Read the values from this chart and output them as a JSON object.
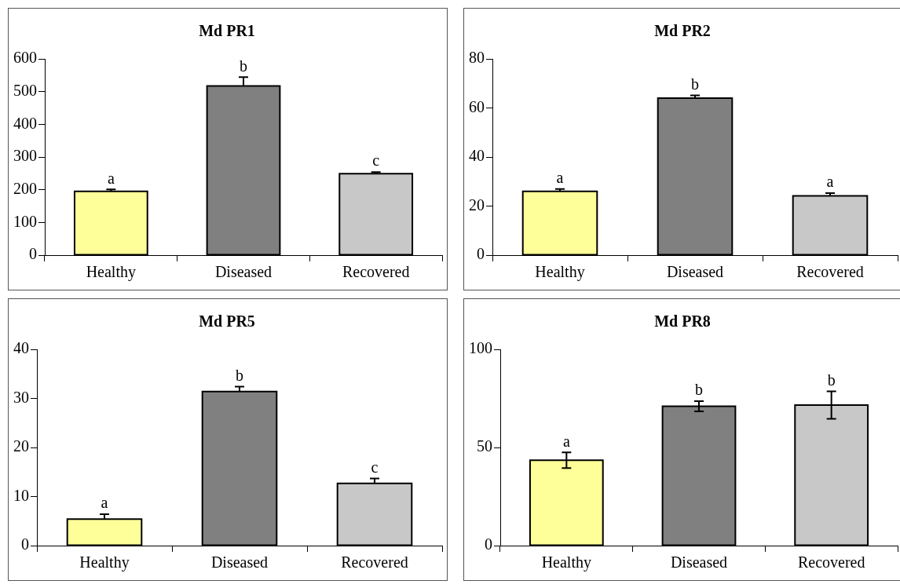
{
  "chart_data": [
    {
      "type": "bar",
      "title": "Md PR1",
      "categories": [
        "Healthy",
        "Diseased",
        "Recovered"
      ],
      "values": [
        195,
        517,
        249
      ],
      "colors": [
        "#ffff99",
        "#808080",
        "#c8c8c8"
      ],
      "errors": [
        [
          195,
          201
        ],
        [
          517,
          544
        ],
        [
          249,
          254
        ]
      ],
      "ylim": [
        0,
        600
      ],
      "yticks": [
        0,
        100,
        200,
        300,
        400,
        500,
        600
      ],
      "grid": false,
      "legend": false,
      "annotations": [
        {
          "text": "a",
          "x": "Healthy",
          "y": 201
        },
        {
          "text": "b",
          "x": "Diseased",
          "y": 544
        },
        {
          "text": "c",
          "x": "Recovered",
          "y": 254
        }
      ]
    },
    {
      "type": "bar",
      "title": "Md PR2",
      "categories": [
        "Healthy",
        "Diseased",
        "Recovered"
      ],
      "values": [
        26,
        64,
        24.2
      ],
      "colors": [
        "#ffff99",
        "#808080",
        "#c8c8c8"
      ],
      "errors": [
        [
          26,
          27
        ],
        [
          64,
          65.1
        ],
        [
          24.2,
          25.3
        ]
      ],
      "ylim": [
        0,
        80
      ],
      "yticks": [
        0,
        20,
        40,
        60,
        80
      ],
      "grid": false,
      "legend": false,
      "annotations": [
        {
          "text": "a",
          "x": "Healthy",
          "y": 27
        },
        {
          "text": "b",
          "x": "Diseased",
          "y": 65.1
        },
        {
          "text": "a",
          "x": "Recovered",
          "y": 25.3
        }
      ]
    },
    {
      "type": "bar",
      "title": "Md PR5",
      "categories": [
        "Healthy",
        "Diseased",
        "Recovered"
      ],
      "values": [
        5.4,
        31.4,
        12.7
      ],
      "colors": [
        "#ffff99",
        "#808080",
        "#c8c8c8"
      ],
      "errors": [
        [
          5.4,
          6.4
        ],
        [
          31.4,
          32.4
        ],
        [
          12.7,
          13.7
        ]
      ],
      "ylim": [
        0,
        40
      ],
      "yticks": [
        0,
        10,
        20,
        30,
        40
      ],
      "grid": false,
      "legend": false,
      "annotations": [
        {
          "text": "a",
          "x": "Healthy",
          "y": 6.4
        },
        {
          "text": "b",
          "x": "Diseased",
          "y": 32.4
        },
        {
          "text": "c",
          "x": "Recovered",
          "y": 13.7
        }
      ]
    },
    {
      "type": "bar",
      "title": "Md PR8",
      "categories": [
        "Healthy",
        "Diseased",
        "Recovered"
      ],
      "values": [
        43.5,
        71,
        71.6
      ],
      "colors": [
        "#ffff99",
        "#808080",
        "#c8c8c8"
      ],
      "errors": [
        4,
        2.6,
        7
      ],
      "ylim": [
        0,
        100
      ],
      "yticks": [
        0,
        50,
        100
      ],
      "grid": false,
      "legend": false,
      "annotations": [
        {
          "text": "a",
          "x": "Healthy",
          "y": 47.5
        },
        {
          "text": "b",
          "x": "Diseased",
          "y": 73.6
        },
        {
          "text": "b",
          "x": "Recovered",
          "y": 78.6
        }
      ]
    }
  ]
}
